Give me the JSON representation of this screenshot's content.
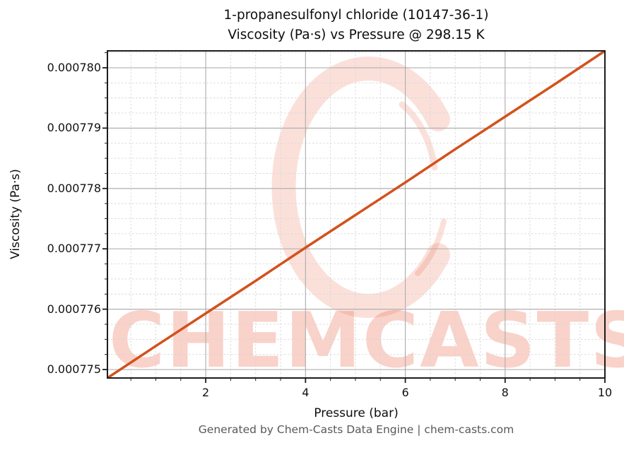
{
  "title": {
    "line1": "1-propanesulfonyl chloride (10147-36-1)",
    "line2": "Viscosity (Pa·s) vs Pressure @ 298.15 K"
  },
  "axes": {
    "xlabel": "Pressure (bar)",
    "ylabel": "Viscosity (Pa·s)",
    "x_tick_labels": [
      "2",
      "4",
      "6",
      "8",
      "10"
    ],
    "y_tick_labels": [
      "0.000775",
      "0.000776",
      "0.000777",
      "0.000778",
      "0.000779",
      "0.000780"
    ]
  },
  "watermark": {
    "text": "CHEMCASTS",
    "color": "#e85a3a"
  },
  "footer": {
    "credit": "Generated by Chem-Casts Data Engine | chem-casts.com"
  },
  "style": {
    "line_color": "#d2521c",
    "grid_major_color": "#b0b0b0",
    "grid_minor_color": "#d6d6d6",
    "spine_color": "#1c1c1c",
    "text_color": "#0d0d0d",
    "footer_color": "#58585a",
    "watermark_color": "rgba(233,90,58,0.27)",
    "watermark_logo_color": "rgba(236,101,71,0.20)"
  },
  "chart_data": {
    "type": "line",
    "title": "1-propanesulfonyl chloride (10147-36-1) — Viscosity (Pa·s) vs Pressure @ 298.15 K",
    "xlabel": "Pressure (bar)",
    "ylabel": "Viscosity (Pa·s)",
    "x": [
      0.03,
      1,
      2,
      3,
      4,
      5,
      6,
      7,
      8,
      9,
      10
    ],
    "series": [
      {
        "name": "Viscosity (Pa·s)",
        "values": [
          0.00077486,
          0.00077539,
          0.00077593,
          0.00077647,
          0.00077702,
          0.00077756,
          0.0007781,
          0.00077865,
          0.00077919,
          0.00077973,
          0.00078028
        ]
      }
    ],
    "xlim": [
      0.03,
      10
    ],
    "ylim": [
      0.00077486,
      0.00078028
    ],
    "x_major_ticks": [
      2,
      4,
      6,
      8,
      10
    ],
    "y_major_ticks": [
      0.000775,
      0.000776,
      0.000777,
      0.000778,
      0.000779,
      0.00078
    ],
    "x_minor_step": 0.5,
    "y_minor_step": 2.5e-07,
    "grid": {
      "major": "solid",
      "minor": "dashed"
    },
    "legend": "none"
  }
}
